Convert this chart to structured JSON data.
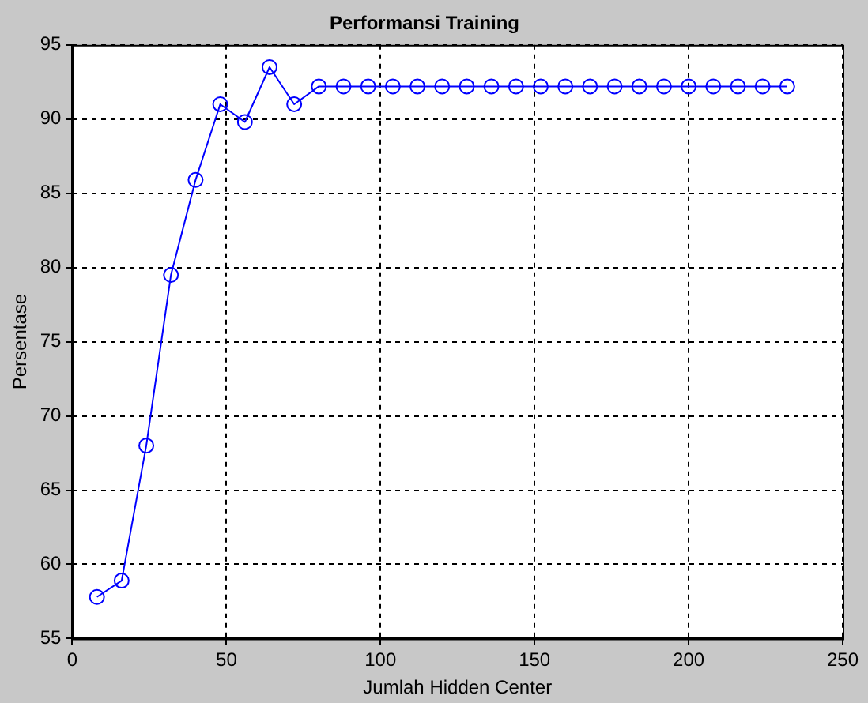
{
  "chart_data": {
    "type": "line",
    "title": "Performansi Training",
    "xlabel": "Jumlah Hidden Center",
    "ylabel": "Persentase",
    "x": [
      8,
      16,
      24,
      32,
      40,
      48,
      56,
      64,
      72,
      80,
      88,
      96,
      104,
      112,
      120,
      128,
      136,
      144,
      152,
      160,
      168,
      176,
      184,
      192,
      200,
      208,
      216,
      224,
      232
    ],
    "series": [
      {
        "color": "#0000ff",
        "values": [
          57.8,
          58.9,
          68,
          79.5,
          85.9,
          91.0,
          89.8,
          93.5,
          91.0,
          92.2,
          92.2,
          92.2,
          92.2,
          92.2,
          92.2,
          92.2,
          92.2,
          92.2,
          92.2,
          92.2,
          92.2,
          92.2,
          92.2,
          92.2,
          92.2,
          92.2,
          92.2,
          92.2,
          92.2
        ]
      }
    ],
    "xlim": [
      0,
      250
    ],
    "xticks": [
      0,
      50,
      100,
      150,
      200,
      250
    ],
    "ylim": [
      55,
      95
    ],
    "yticks": [
      55,
      60,
      65,
      70,
      75,
      80,
      85,
      90,
      95
    ],
    "grid": true,
    "legend": false,
    "marker": "circle",
    "line_style": "solid"
  }
}
